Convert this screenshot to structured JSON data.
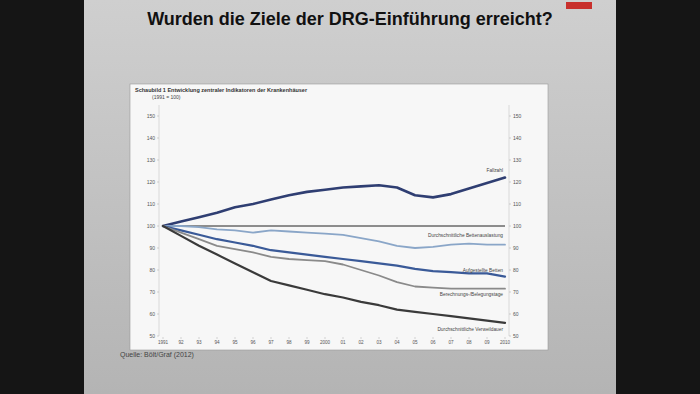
{
  "slide_title": "Wurden die Ziele der DRG-Einführung erreicht?",
  "chart_data": {
    "type": "line",
    "title": "Schaubild 1  Entwicklung zentraler Indikatoren der Krankenhäuser",
    "subtitle": "(1991 = 100)",
    "source": "Quelle: Bölt/Graf (2012)",
    "categories": [
      "1991",
      "92",
      "93",
      "94",
      "95",
      "96",
      "97",
      "98",
      "99",
      "2000",
      "01",
      "02",
      "03",
      "04",
      "05",
      "06",
      "07",
      "08",
      "09",
      "2010"
    ],
    "series": [
      {
        "name": "Fallzahl",
        "color": "#2f3e72",
        "values": [
          100,
          102,
          104,
          106,
          108.5,
          110,
          112,
          114,
          115.5,
          116.5,
          117.5,
          118,
          118.5,
          117.5,
          114,
          113,
          114.5,
          117,
          119.5,
          122
        ]
      },
      {
        "name": "Durchschnittliche Bettenauslastung",
        "color": "#8aa6c8",
        "values": [
          100,
          100,
          99.5,
          98.5,
          98,
          97,
          98,
          97.5,
          97,
          96.5,
          96,
          94.5,
          93,
          91,
          90,
          90.5,
          91.5,
          92,
          91.5,
          91.5
        ]
      },
      {
        "name": "Aufgestellte Betten",
        "color": "#3a5a98",
        "values": [
          100,
          98,
          96,
          94,
          92.5,
          91,
          89,
          88,
          87,
          86,
          85,
          84,
          83,
          82,
          80.5,
          79.5,
          79,
          78.5,
          78.5,
          77
        ]
      },
      {
        "name": "Berechnungs-/Belegungstage",
        "color": "#8a8a8a",
        "values": [
          100,
          97,
          94,
          91,
          89.5,
          88,
          86,
          85,
          84.5,
          84,
          82.5,
          80,
          77.5,
          74.5,
          72.5,
          72,
          71.5,
          71.5,
          71.5,
          71.5
        ]
      },
      {
        "name": "Durchschnittliche Verweildauer",
        "color": "#3a3a3a",
        "values": [
          100,
          95.5,
          91,
          87,
          83,
          79,
          75,
          73,
          71,
          69,
          67.5,
          65.5,
          64,
          62,
          61,
          60,
          59,
          58,
          57,
          56
        ]
      }
    ],
    "baseline": 100,
    "ylim": [
      50,
      155
    ],
    "yticks": [
      50,
      60,
      70,
      80,
      90,
      100,
      110,
      120,
      130,
      140,
      150
    ],
    "grid": false
  }
}
